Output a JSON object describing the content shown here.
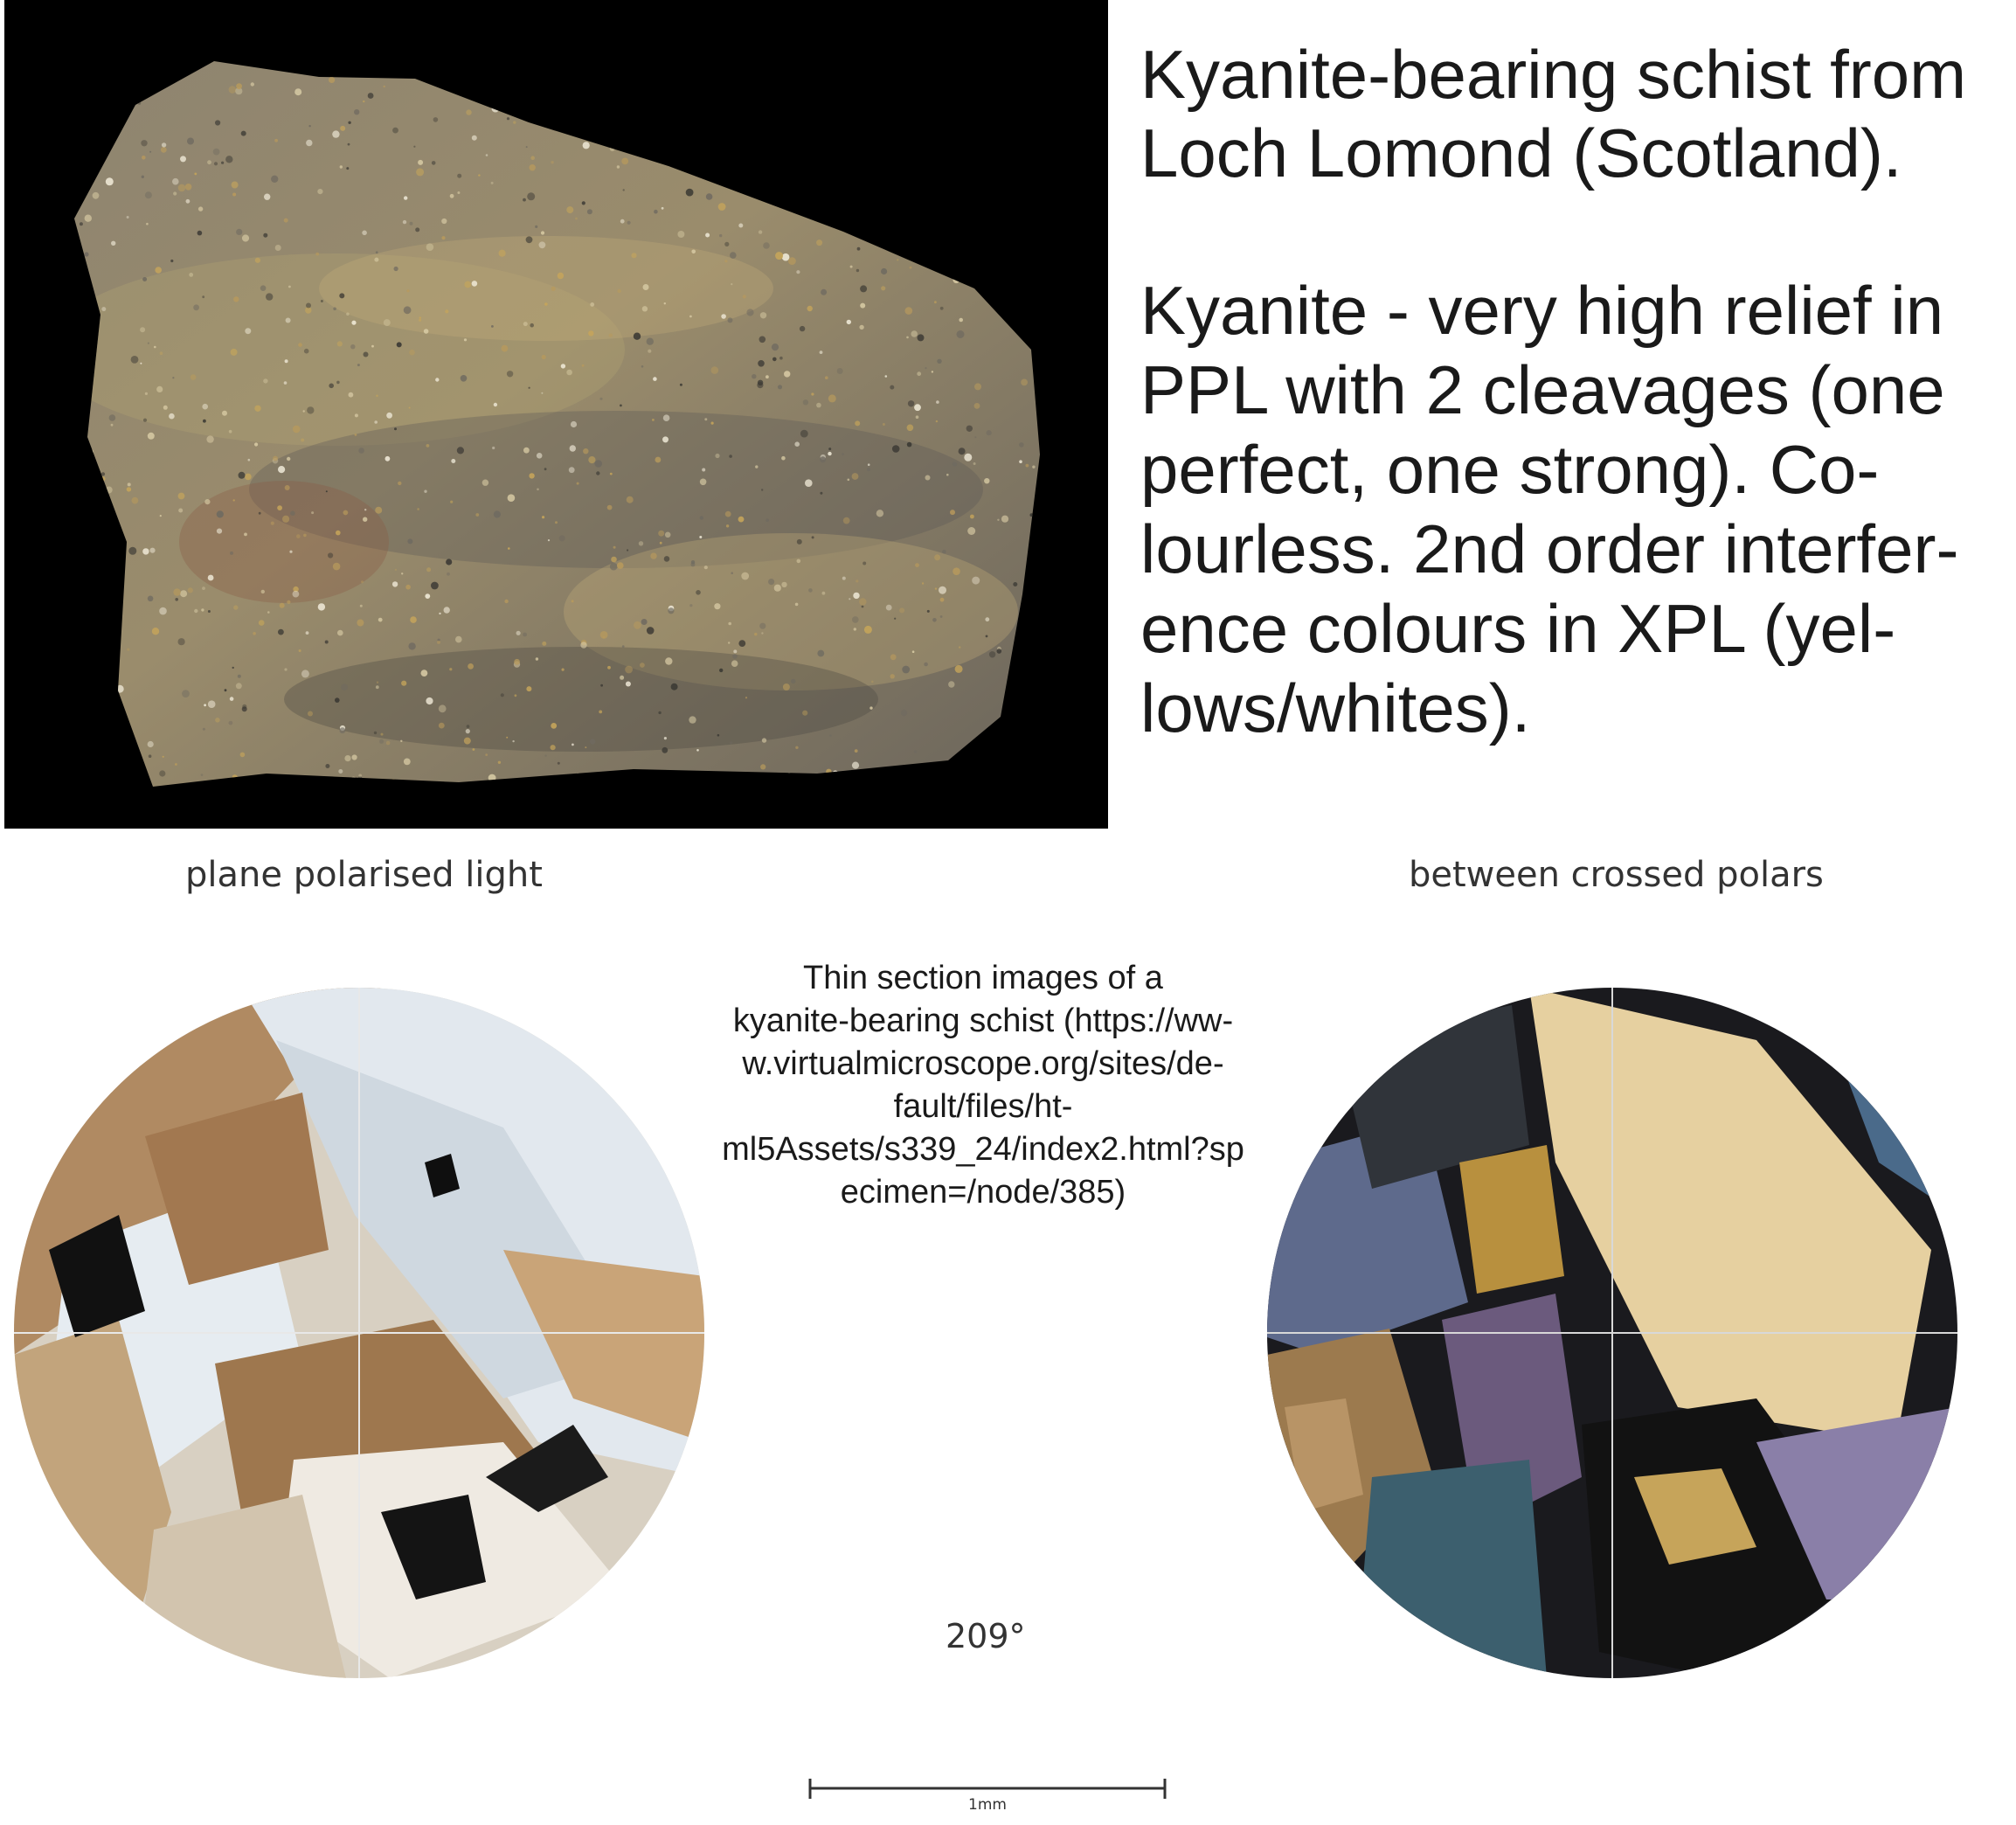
{
  "hand_specimen": {
    "title": "Kyanite-bearing schist from\nLoch Lomond (Scotland).",
    "description": "Kyanite - very high relief in\nPPL with 2 cleavages (one\nperfect, one strong). Co-\nlourless. 2nd order interfer-\nence colours in XPL (yel-\nlows/whites)."
  },
  "views": {
    "ppl_label": "plane polarised light",
    "xpl_label": "between crossed polars"
  },
  "caption": "Thin section images of a\nkyanite-bearing schist (https://ww-\nw.virtualmicroscope.org/sites/de-\nfault/files/ht-\nml5Assets/s339_24/index2.html?sp\necimen=/node/385)",
  "rotation": "209°",
  "scale_bar": {
    "label": "1mm"
  },
  "colors": {
    "background": "#ffffff",
    "rock_backdrop": "#000000",
    "ppl_biotite": "#a07a52",
    "ppl_kyanite": "#d4dce4",
    "xpl_kyanite": "#e8d4a6",
    "xpl_extinct": "#121212"
  }
}
